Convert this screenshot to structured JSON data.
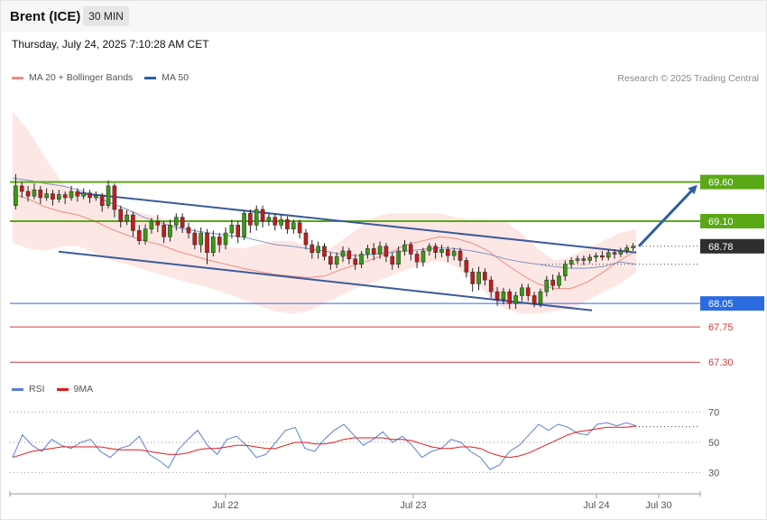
{
  "header": {
    "instrument": "Brent (ICE)",
    "timeframe": "30 MIN"
  },
  "datetime": "Thursday, July 24, 2025 7:10:28 AM CET",
  "legend": [
    {
      "label": "MA 20 + Bollinger Bands",
      "color": "#f08a80"
    },
    {
      "label": "MA 50",
      "color": "#2f5f9e"
    }
  ],
  "copyright": "Research © 2025 Trading Central",
  "rsi_legend": [
    {
      "label": "RSI",
      "color": "#5b7fd8"
    },
    {
      "label": "9MA",
      "color": "#e21b1b"
    }
  ],
  "chart_data": [
    {
      "type": "candlestick",
      "x_ticks": [
        "Jul 22",
        "Jul 23",
        "Jul 24",
        "Jul 30"
      ],
      "current_price": {
        "value": 68.78,
        "label": "68.78"
      },
      "levels": [
        {
          "value": 69.6,
          "label": "69.60",
          "role": "resistance",
          "color": "#5aa816",
          "tag": true
        },
        {
          "value": 69.1,
          "label": "69.10",
          "role": "resistance",
          "color": "#5aa816",
          "tag": true
        },
        {
          "value": 68.05,
          "label": "68.05",
          "role": "pivot",
          "color": "#2b6be0",
          "tag": true
        },
        {
          "value": 67.75,
          "label": "67.75",
          "role": "support",
          "color": "#d23a3a",
          "tag": false
        },
        {
          "value": 67.3,
          "label": "67.30",
          "role": "support",
          "color": "#d23a3a",
          "tag": false
        }
      ],
      "channel": {
        "upper": [
          [
            0.0,
            69.55
          ],
          [
            1.0,
            68.7
          ]
        ],
        "lower": [
          [
            -0.05,
            68.82
          ],
          [
            1.0,
            67.9
          ]
        ]
      },
      "forecast_arrow": {
        "from": 68.78,
        "to": 69.6
      },
      "bollinger": {
        "mid": [
          69.45,
          69.38,
          69.28,
          69.22,
          69.18,
          69.1,
          69.0,
          68.92,
          68.85,
          68.8,
          68.72,
          68.66,
          68.6,
          68.55,
          68.5,
          68.46,
          68.42,
          68.4,
          68.38,
          68.4,
          68.48,
          68.55,
          68.62,
          68.7,
          68.8,
          68.85,
          68.9,
          68.88,
          68.82,
          68.72,
          68.56,
          68.42,
          68.3,
          68.24,
          68.24,
          68.32,
          68.45,
          68.6,
          68.72
        ],
        "upper": [
          70.5,
          70.25,
          69.9,
          69.6,
          69.45,
          69.4,
          69.3,
          69.25,
          69.2,
          69.15,
          69.05,
          68.95,
          68.85,
          68.78,
          68.75,
          68.8,
          68.85,
          68.85,
          68.78,
          68.7,
          68.85,
          69.0,
          69.15,
          69.2,
          69.2,
          69.2,
          69.2,
          69.15,
          69.12,
          69.12,
          69.1,
          68.95,
          68.75,
          68.6,
          68.65,
          68.75,
          68.85,
          68.95,
          69.0
        ],
        "lower": [
          68.82,
          68.75,
          68.72,
          68.78,
          68.78,
          68.7,
          68.6,
          68.55,
          68.48,
          68.42,
          68.36,
          68.3,
          68.25,
          68.18,
          68.1,
          68.02,
          67.95,
          67.92,
          67.95,
          68.05,
          68.15,
          68.25,
          68.32,
          68.4,
          68.48,
          68.55,
          68.6,
          68.52,
          68.35,
          68.15,
          67.98,
          67.92,
          67.92,
          67.95,
          67.98,
          68.08,
          68.2,
          68.3,
          68.45
        ]
      },
      "ma50": [
        69.65,
        69.62,
        69.58,
        69.55,
        69.5,
        69.42,
        69.33,
        69.25,
        69.15,
        69.08,
        69.02,
        68.98,
        68.95,
        68.92,
        68.9,
        68.85,
        68.8,
        68.78,
        68.75,
        68.72,
        68.68,
        68.66,
        68.68,
        68.7,
        68.72,
        68.74,
        68.76,
        68.75,
        68.72,
        68.68,
        68.62,
        68.58,
        68.55,
        68.52,
        68.5,
        68.5,
        68.52,
        68.58,
        68.55
      ],
      "candles": [
        [
          69.3,
          69.55,
          69.7,
          69.25
        ],
        [
          69.55,
          69.48,
          69.6,
          69.4
        ],
        [
          69.48,
          69.42,
          69.55,
          69.35
        ],
        [
          69.42,
          69.5,
          69.58,
          69.38
        ],
        [
          69.5,
          69.4,
          69.55,
          69.32
        ],
        [
          69.4,
          69.45,
          69.52,
          69.36
        ],
        [
          69.45,
          69.38,
          69.5,
          69.3
        ],
        [
          69.38,
          69.44,
          69.5,
          69.34
        ],
        [
          69.44,
          69.4,
          69.48,
          69.32
        ],
        [
          69.4,
          69.48,
          69.55,
          69.36
        ],
        [
          69.48,
          69.42,
          69.52,
          69.35
        ],
        [
          69.42,
          69.46,
          69.52,
          69.38
        ],
        [
          69.46,
          69.4,
          69.5,
          69.33
        ],
        [
          69.4,
          69.43,
          69.48,
          69.36
        ],
        [
          69.43,
          69.3,
          69.46,
          69.22
        ],
        [
          69.3,
          69.55,
          69.62,
          69.26
        ],
        [
          69.55,
          69.25,
          69.58,
          69.15
        ],
        [
          69.25,
          69.1,
          69.3,
          69.02
        ],
        [
          69.1,
          69.18,
          69.24,
          69.05
        ],
        [
          69.18,
          68.98,
          69.22,
          68.9
        ],
        [
          68.98,
          68.85,
          69.05,
          68.8
        ],
        [
          68.85,
          69.0,
          69.06,
          68.8
        ],
        [
          69.0,
          69.1,
          69.14,
          68.94
        ],
        [
          69.1,
          69.05,
          69.18,
          68.96
        ],
        [
          69.05,
          68.9,
          69.1,
          68.82
        ],
        [
          68.9,
          69.05,
          69.12,
          68.84
        ],
        [
          69.05,
          69.15,
          69.2,
          68.98
        ],
        [
          69.15,
          69.02,
          69.2,
          68.95
        ],
        [
          69.02,
          68.95,
          69.08,
          68.88
        ],
        [
          68.95,
          68.8,
          69.0,
          68.74
        ],
        [
          68.8,
          68.95,
          69.02,
          68.7
        ],
        [
          68.95,
          68.7,
          69.0,
          68.55
        ],
        [
          68.7,
          68.9,
          68.98,
          68.65
        ],
        [
          68.9,
          68.8,
          68.95,
          68.7
        ],
        [
          68.8,
          68.95,
          69.02,
          68.74
        ],
        [
          68.95,
          69.05,
          69.12,
          68.88
        ],
        [
          69.05,
          68.9,
          69.1,
          68.82
        ],
        [
          68.9,
          69.2,
          69.24,
          68.86
        ],
        [
          69.2,
          69.05,
          69.25,
          68.95
        ],
        [
          69.05,
          69.25,
          69.3,
          68.98
        ],
        [
          69.25,
          69.1,
          69.3,
          69.02
        ],
        [
          69.1,
          69.15,
          69.2,
          69.04
        ],
        [
          69.15,
          69.05,
          69.2,
          68.98
        ],
        [
          69.05,
          69.12,
          69.18,
          69.0
        ],
        [
          69.12,
          69.0,
          69.16,
          68.94
        ],
        [
          69.0,
          69.08,
          69.12,
          68.94
        ],
        [
          69.08,
          68.95,
          69.12,
          68.88
        ],
        [
          68.95,
          68.8,
          69.0,
          68.74
        ],
        [
          68.8,
          68.7,
          68.86,
          68.62
        ],
        [
          68.7,
          68.78,
          68.84,
          68.62
        ],
        [
          68.78,
          68.65,
          68.82,
          68.6
        ],
        [
          68.65,
          68.55,
          68.7,
          68.48
        ],
        [
          68.55,
          68.65,
          68.7,
          68.5
        ],
        [
          68.65,
          68.72,
          68.78,
          68.58
        ],
        [
          68.72,
          68.62,
          68.76,
          68.55
        ],
        [
          68.62,
          68.55,
          68.68,
          68.48
        ],
        [
          68.55,
          68.68,
          68.72,
          68.5
        ],
        [
          68.68,
          68.75,
          68.8,
          68.62
        ],
        [
          68.75,
          68.68,
          68.82,
          68.6
        ],
        [
          68.68,
          68.78,
          68.84,
          68.62
        ],
        [
          68.78,
          68.65,
          68.82,
          68.58
        ],
        [
          68.65,
          68.55,
          68.7,
          68.48
        ],
        [
          68.55,
          68.72,
          68.78,
          68.5
        ],
        [
          68.72,
          68.8,
          68.86,
          68.66
        ],
        [
          68.8,
          68.68,
          68.84,
          68.6
        ],
        [
          68.68,
          68.58,
          68.72,
          68.5
        ],
        [
          68.58,
          68.72,
          68.76,
          68.52
        ],
        [
          68.72,
          68.78,
          68.82,
          68.66
        ],
        [
          68.78,
          68.7,
          68.82,
          68.62
        ],
        [
          68.7,
          68.74,
          68.8,
          68.64
        ],
        [
          68.74,
          68.66,
          68.78,
          68.58
        ],
        [
          68.66,
          68.72,
          68.76,
          68.6
        ],
        [
          68.72,
          68.6,
          68.76,
          68.52
        ],
        [
          68.6,
          68.45,
          68.64,
          68.38
        ],
        [
          68.45,
          68.3,
          68.5,
          68.2
        ],
        [
          68.3,
          68.45,
          68.52,
          68.22
        ],
        [
          68.45,
          68.35,
          68.5,
          68.28
        ],
        [
          68.35,
          68.2,
          68.4,
          68.12
        ],
        [
          68.2,
          68.1,
          68.26,
          68.02
        ],
        [
          68.1,
          68.2,
          68.25,
          68.04
        ],
        [
          68.2,
          68.05,
          68.24,
          67.98
        ],
        [
          68.05,
          68.15,
          68.2,
          67.98
        ],
        [
          68.15,
          68.25,
          68.3,
          68.08
        ],
        [
          68.25,
          68.15,
          68.3,
          68.08
        ],
        [
          68.15,
          68.05,
          68.2,
          68.0
        ],
        [
          68.05,
          68.2,
          68.24,
          68.0
        ],
        [
          68.2,
          68.35,
          68.4,
          68.14
        ],
        [
          68.35,
          68.28,
          68.42,
          68.22
        ],
        [
          68.28,
          68.4,
          68.45,
          68.24
        ],
        [
          68.4,
          68.55,
          68.6,
          68.34
        ],
        [
          68.55,
          68.6,
          68.64,
          68.5
        ],
        [
          68.6,
          68.62,
          68.66,
          68.56
        ],
        [
          68.62,
          68.6,
          68.66,
          68.54
        ],
        [
          68.6,
          68.64,
          68.68,
          68.56
        ],
        [
          68.64,
          68.66,
          68.7,
          68.58
        ],
        [
          68.66,
          68.64,
          68.72,
          68.6
        ],
        [
          68.64,
          68.7,
          68.74,
          68.6
        ],
        [
          68.7,
          68.68,
          68.74,
          68.62
        ],
        [
          68.68,
          68.72,
          68.76,
          68.64
        ],
        [
          68.72,
          68.76,
          68.8,
          68.68
        ],
        [
          68.76,
          68.78,
          68.82,
          68.72
        ]
      ]
    },
    {
      "type": "line",
      "name": "RSI panel",
      "y_ticks": [
        70,
        50,
        30
      ],
      "ylim": [
        20,
        80
      ],
      "series": [
        {
          "name": "RSI",
          "color": "#5b7fd8",
          "values": [
            40,
            55,
            48,
            44,
            52,
            48,
            46,
            50,
            52,
            44,
            40,
            46,
            48,
            54,
            42,
            38,
            33,
            45,
            52,
            58,
            48,
            42,
            52,
            54,
            48,
            40,
            42,
            50,
            58,
            60,
            46,
            44,
            52,
            58,
            62,
            55,
            48,
            52,
            57,
            50,
            54,
            48,
            40,
            44,
            46,
            52,
            50,
            44,
            40,
            32,
            35,
            44,
            48,
            55,
            62,
            58,
            62,
            60,
            56,
            55,
            62,
            63,
            61,
            63,
            61
          ]
        },
        {
          "name": "9MA",
          "color": "#e21b1b",
          "values": [
            40,
            42,
            44,
            45,
            46,
            47,
            47,
            47,
            47,
            47,
            46,
            45,
            45,
            45,
            44,
            43,
            42,
            42,
            43,
            45,
            46,
            46,
            47,
            48,
            48,
            47,
            46,
            46,
            48,
            50,
            50,
            49,
            49,
            50,
            52,
            53,
            53,
            53,
            53,
            52,
            52,
            51,
            49,
            47,
            46,
            46,
            47,
            47,
            46,
            43,
            41,
            40,
            41,
            43,
            46,
            49,
            52,
            55,
            57,
            58,
            59,
            60,
            60,
            60,
            61
          ]
        }
      ]
    }
  ]
}
